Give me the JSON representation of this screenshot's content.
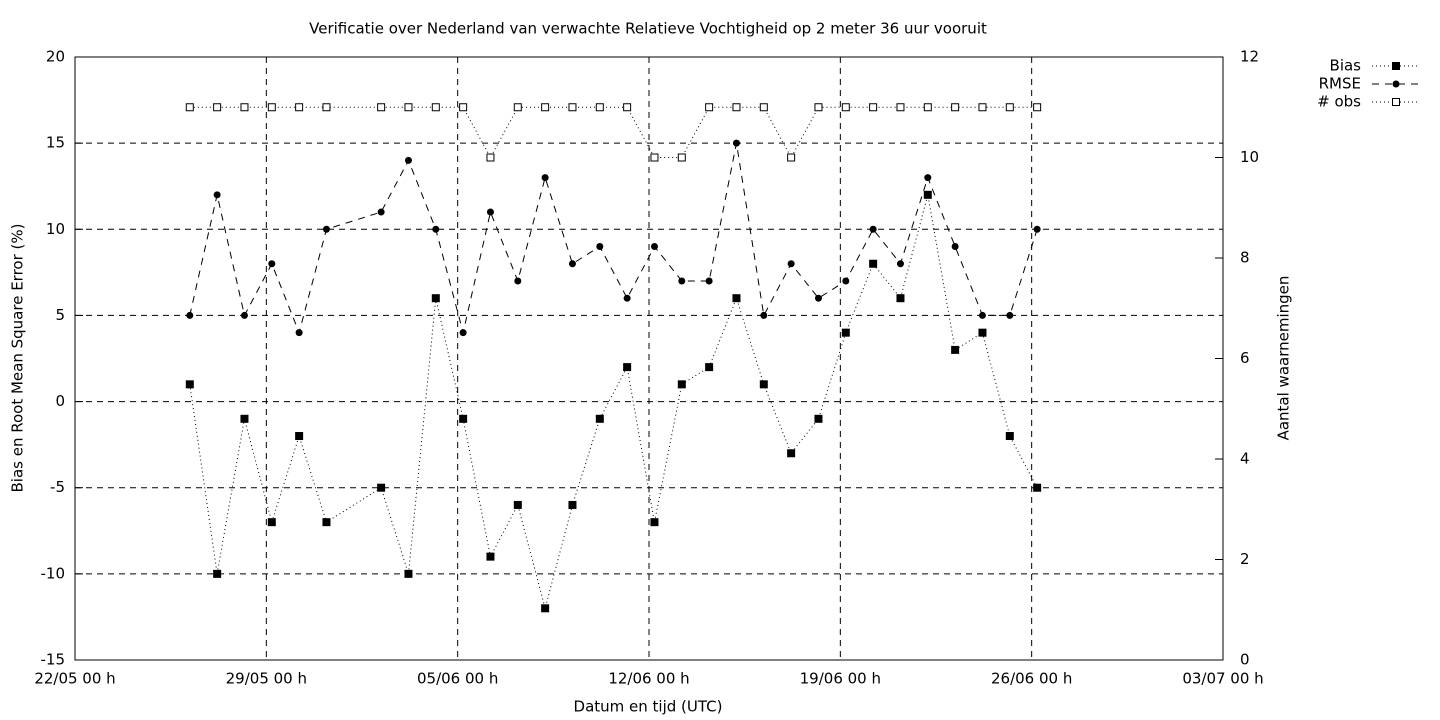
{
  "chart_data": {
    "type": "line",
    "title": "Verificatie over Nederland van verwachte Relatieve Vochtigheid op 2 meter 36 uur vooruit",
    "xlabel": "Datum en tijd (UTC)",
    "ylabel": "Bias en Root Mean Square Error (%)",
    "y2label": "Aantal waarnemingen",
    "x": [
      4.2,
      5.2,
      6.2,
      7.2,
      8.2,
      9.2,
      11.2,
      12.2,
      13.2,
      14.2,
      15.2,
      16.2,
      17.2,
      18.2,
      19.2,
      20.2,
      21.2,
      22.2,
      23.2,
      24.2,
      25.2,
      26.2,
      27.2,
      28.2,
      29.2,
      30.2,
      31.2,
      32.2,
      33.2,
      34.2,
      35.2
    ],
    "xlim": [
      0,
      42
    ],
    "xticks": [
      {
        "value": 0,
        "label": "22/05 00 h"
      },
      {
        "value": 7,
        "label": "29/05 00 h"
      },
      {
        "value": 14,
        "label": "05/06 00 h"
      },
      {
        "value": 21,
        "label": "12/06 00 h"
      },
      {
        "value": 28,
        "label": "19/06 00 h"
      },
      {
        "value": 35,
        "label": "26/06 00 h"
      },
      {
        "value": 42,
        "label": "03/07 00 h"
      }
    ],
    "ylim": [
      -15,
      20
    ],
    "yticks": [
      -15,
      -10,
      -5,
      0,
      5,
      10,
      15,
      20
    ],
    "y2lim": [
      0,
      12
    ],
    "y2ticks": [
      0,
      2,
      4,
      6,
      8,
      10,
      12
    ],
    "grid": true,
    "legend": "outside-top-right",
    "series": [
      {
        "name": "Bias",
        "color": "#000000",
        "line": "dotted",
        "marker": "square-filled",
        "values": [
          1,
          -10,
          -1,
          -7,
          -2,
          -7,
          -5,
          -10,
          6,
          -1,
          -9,
          -6,
          -12,
          -6,
          -1,
          2,
          -7,
          1,
          2,
          6,
          1,
          -3,
          -1,
          4,
          8,
          6,
          12,
          3,
          4,
          -2,
          -5
        ]
      },
      {
        "name": "RMSE",
        "color": "#000000",
        "line": "dashed",
        "marker": "circle-filled",
        "values": [
          5,
          12,
          5,
          8,
          4,
          10,
          11,
          14,
          10,
          4,
          11,
          7,
          13,
          8,
          9,
          6,
          9,
          7,
          7,
          15,
          5,
          8,
          6,
          7,
          10,
          8,
          13,
          9,
          5,
          5,
          10
        ]
      },
      {
        "name": "# obs",
        "color": "#000000",
        "line": "dotted",
        "marker": "square-open",
        "axis": "y2",
        "values": [
          11,
          11,
          11,
          11,
          11,
          11,
          11,
          11,
          11,
          11,
          10,
          11,
          11,
          11,
          11,
          11,
          10,
          10,
          11,
          11,
          11,
          10,
          11,
          11,
          11,
          11,
          11,
          11,
          11,
          11,
          11
        ]
      }
    ]
  }
}
